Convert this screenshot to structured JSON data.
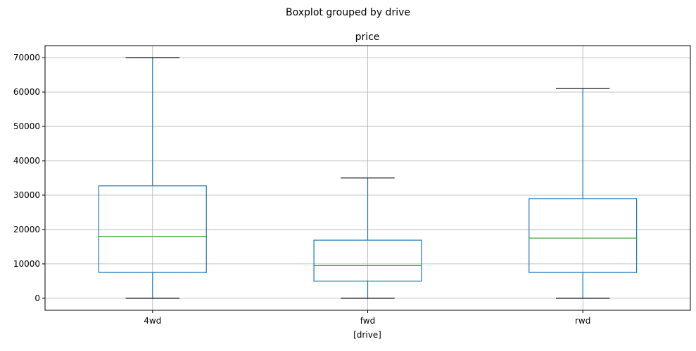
{
  "figure": {
    "suptitle": "Boxplot grouped by drive"
  },
  "chart_data": {
    "type": "boxplot",
    "title": "price",
    "xlabel": "[drive]",
    "ylabel": "",
    "categories": [
      "4wd",
      "fwd",
      "rwd"
    ],
    "boxes": [
      {
        "category": "4wd",
        "whisker_low": 0,
        "q1": 7500,
        "median": 18000,
        "q3": 32700,
        "whisker_high": 70000
      },
      {
        "category": "fwd",
        "whisker_low": 0,
        "q1": 5000,
        "median": 9500,
        "q3": 16900,
        "whisker_high": 35000
      },
      {
        "category": "rwd",
        "whisker_low": 0,
        "q1": 7500,
        "median": 17500,
        "q3": 29000,
        "whisker_high": 61000
      }
    ],
    "yticks": [
      0,
      10000,
      20000,
      30000,
      40000,
      50000,
      60000,
      70000
    ],
    "ylim": [
      -3500,
      73500
    ],
    "grid": true,
    "colors": {
      "box": "#1f77b4",
      "median": "#2ca02c",
      "caps": "#000000",
      "grid": "#b0b0b0",
      "axes": "#000000"
    }
  }
}
